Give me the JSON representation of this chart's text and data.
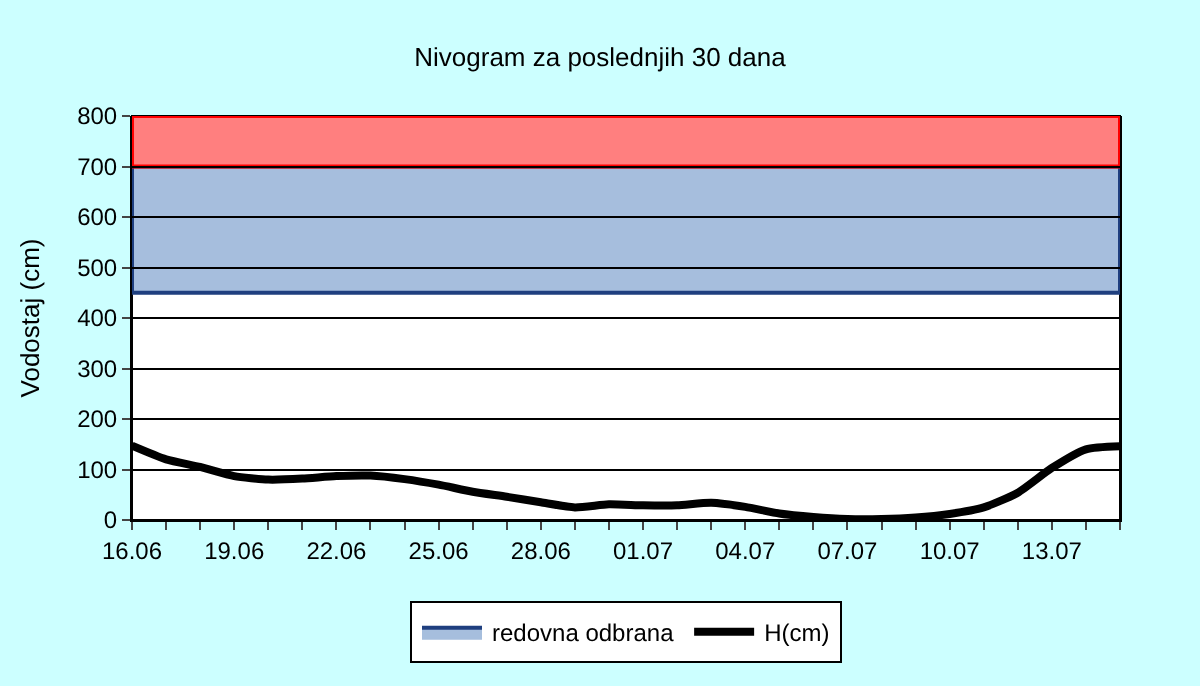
{
  "chart_data": {
    "type": "line",
    "title": "Nivogram za poslednjih 30 dana",
    "ylabel": "Vodostaj (cm)",
    "categories": [
      "16.06",
      null,
      null,
      "19.06",
      null,
      null,
      "22.06",
      null,
      null,
      "25.06",
      null,
      null,
      "28.06",
      null,
      null,
      "01.07",
      null,
      null,
      "04.07",
      null,
      null,
      "07.07",
      null,
      null,
      "10.07",
      null,
      null,
      "13.07",
      null,
      null
    ],
    "series": [
      {
        "name": "H(cm)",
        "color": "#000000",
        "values": [
          147,
          120,
          105,
          87,
          80,
          82,
          87,
          88,
          81,
          70,
          56,
          46,
          35,
          25,
          31,
          29,
          29,
          34,
          26,
          13,
          6,
          2,
          2,
          5,
          12,
          25,
          54,
          103,
          140,
          146
        ]
      }
    ],
    "bands": [
      {
        "axis": "y",
        "from": 450,
        "to": 700,
        "label": "redovna odbrana",
        "color": "#a6bedd"
      },
      {
        "axis": "y",
        "from": 700,
        "to": 800,
        "color": "#ff7f7f"
      }
    ],
    "ylim": [
      0,
      800
    ],
    "yticks": [
      0,
      100,
      200,
      300,
      400,
      500,
      600,
      700,
      800
    ],
    "grid": "y",
    "legend": "bottom",
    "marker": "none",
    "line_style": "solid"
  }
}
